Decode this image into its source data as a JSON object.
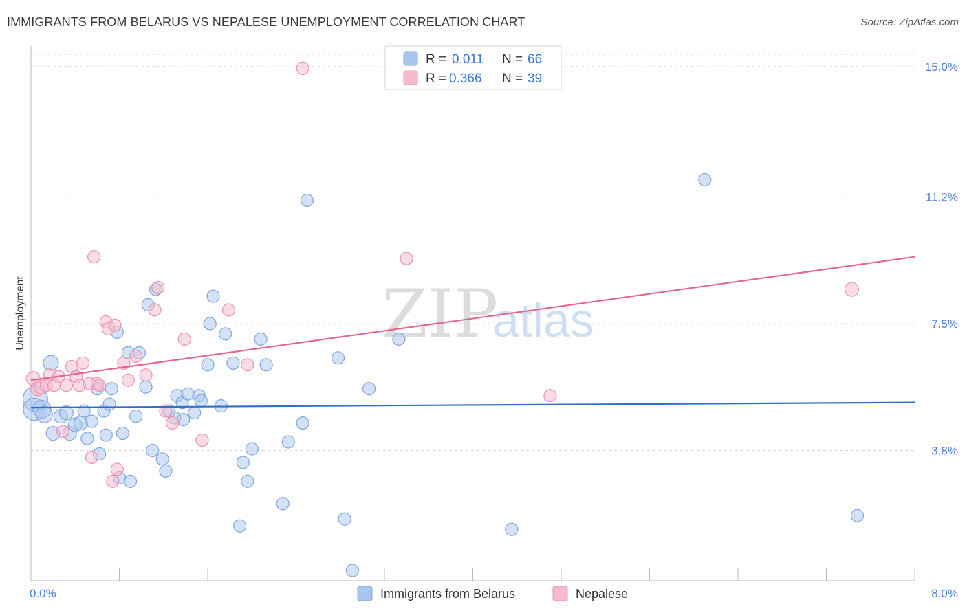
{
  "header": {
    "title": "IMMIGRANTS FROM BELARUS VS NEPALESE UNEMPLOYMENT CORRELATION CHART",
    "source": "Source: ZipAtlas.com"
  },
  "watermark": {
    "zip": "ZIP",
    "atlas": "atlas"
  },
  "colors": {
    "belarus_fill": "#a9c6ef",
    "belarus_stroke": "#7ea6dd",
    "belarus_line": "#2f6fcc",
    "nepalese_fill": "#f6b9cd",
    "nepalese_stroke": "#ec90ae",
    "nepalese_line": "#e46690",
    "grid": "#d8d8d8",
    "tick_label": "#4a7fd0"
  },
  "legend": {
    "rows": [
      {
        "r_label": "R =",
        "r_value": "0.011",
        "n_label": "N =",
        "n_value": "66"
      },
      {
        "r_label": "R =",
        "r_value": "0.366",
        "n_label": "N =",
        "n_value": "39"
      }
    ]
  },
  "chart_data": {
    "type": "scatter",
    "title": "IMMIGRANTS FROM BELARUS VS NEPALESE UNEMPLOYMENT CORRELATION CHART",
    "xlabel": "",
    "ylabel": "Unemployment",
    "xlim": [
      0,
      8
    ],
    "ylim": [
      0,
      15.7
    ],
    "x_tick_labels": [
      "0.0%",
      "8.0%"
    ],
    "y_ticks": [
      3.8,
      7.5,
      11.2,
      15.0
    ],
    "y_tick_labels": [
      "3.8%",
      "7.5%",
      "11.2%",
      "15.0%"
    ],
    "grid": true,
    "legend_position": "top-center",
    "series": [
      {
        "name": "Immigrants from Belarus",
        "R": 0.011,
        "N": 66,
        "trend": {
          "x": [
            0,
            8
          ],
          "y": [
            5.05,
            5.2
          ]
        },
        "points": [
          {
            "x": 0.04,
            "y": 5.3,
            "s": 18
          },
          {
            "x": 0.03,
            "y": 5.0,
            "s": 16
          },
          {
            "x": 0.1,
            "y": 5.0,
            "s": 13
          },
          {
            "x": 0.12,
            "y": 4.85,
            "s": 12
          },
          {
            "x": 0.18,
            "y": 6.35,
            "s": 11
          },
          {
            "x": 0.2,
            "y": 4.3,
            "s": 10
          },
          {
            "x": 0.27,
            "y": 4.8,
            "s": 10
          },
          {
            "x": 0.32,
            "y": 4.9,
            "s": 10
          },
          {
            "x": 0.35,
            "y": 4.3,
            "s": 10
          },
          {
            "x": 0.4,
            "y": 4.55,
            "s": 10
          },
          {
            "x": 0.45,
            "y": 4.6,
            "s": 10
          },
          {
            "x": 0.48,
            "y": 4.95,
            "s": 9
          },
          {
            "x": 0.51,
            "y": 4.15,
            "s": 9
          },
          {
            "x": 0.55,
            "y": 4.65,
            "s": 9
          },
          {
            "x": 0.6,
            "y": 5.6,
            "s": 9
          },
          {
            "x": 0.62,
            "y": 3.7,
            "s": 9
          },
          {
            "x": 0.66,
            "y": 4.95,
            "s": 9
          },
          {
            "x": 0.68,
            "y": 4.25,
            "s": 9
          },
          {
            "x": 0.71,
            "y": 5.15,
            "s": 9
          },
          {
            "x": 0.73,
            "y": 5.6,
            "s": 9
          },
          {
            "x": 0.78,
            "y": 7.25,
            "s": 9
          },
          {
            "x": 0.8,
            "y": 3.0,
            "s": 9
          },
          {
            "x": 0.83,
            "y": 4.3,
            "s": 9
          },
          {
            "x": 0.88,
            "y": 6.65,
            "s": 9
          },
          {
            "x": 0.9,
            "y": 2.9,
            "s": 9
          },
          {
            "x": 0.95,
            "y": 4.8,
            "s": 9
          },
          {
            "x": 0.98,
            "y": 6.65,
            "s": 9
          },
          {
            "x": 1.04,
            "y": 5.65,
            "s": 9
          },
          {
            "x": 1.06,
            "y": 8.05,
            "s": 9
          },
          {
            "x": 1.1,
            "y": 3.8,
            "s": 9
          },
          {
            "x": 1.13,
            "y": 8.5,
            "s": 9
          },
          {
            "x": 1.19,
            "y": 3.55,
            "s": 9
          },
          {
            "x": 1.22,
            "y": 3.2,
            "s": 9
          },
          {
            "x": 1.25,
            "y": 4.95,
            "s": 9
          },
          {
            "x": 1.3,
            "y": 4.75,
            "s": 9
          },
          {
            "x": 1.32,
            "y": 5.4,
            "s": 9
          },
          {
            "x": 1.37,
            "y": 5.2,
            "s": 9
          },
          {
            "x": 1.38,
            "y": 4.7,
            "s": 9
          },
          {
            "x": 1.42,
            "y": 5.45,
            "s": 9
          },
          {
            "x": 1.48,
            "y": 4.9,
            "s": 9
          },
          {
            "x": 1.52,
            "y": 5.4,
            "s": 9
          },
          {
            "x": 1.54,
            "y": 5.25,
            "s": 9
          },
          {
            "x": 1.6,
            "y": 6.3,
            "s": 9
          },
          {
            "x": 1.62,
            "y": 7.5,
            "s": 9
          },
          {
            "x": 1.65,
            "y": 8.3,
            "s": 9
          },
          {
            "x": 1.72,
            "y": 5.1,
            "s": 9
          },
          {
            "x": 1.76,
            "y": 7.2,
            "s": 9
          },
          {
            "x": 1.83,
            "y": 6.35,
            "s": 9
          },
          {
            "x": 1.89,
            "y": 1.6,
            "s": 9
          },
          {
            "x": 1.92,
            "y": 3.45,
            "s": 9
          },
          {
            "x": 1.96,
            "y": 2.9,
            "s": 9
          },
          {
            "x": 2.0,
            "y": 3.85,
            "s": 9
          },
          {
            "x": 2.08,
            "y": 7.05,
            "s": 9
          },
          {
            "x": 2.13,
            "y": 6.3,
            "s": 9
          },
          {
            "x": 2.28,
            "y": 2.25,
            "s": 9
          },
          {
            "x": 2.33,
            "y": 4.05,
            "s": 9
          },
          {
            "x": 2.46,
            "y": 4.6,
            "s": 9
          },
          {
            "x": 2.5,
            "y": 11.1,
            "s": 9
          },
          {
            "x": 2.78,
            "y": 6.5,
            "s": 9
          },
          {
            "x": 2.84,
            "y": 1.8,
            "s": 9
          },
          {
            "x": 2.91,
            "y": 0.3,
            "s": 9
          },
          {
            "x": 3.06,
            "y": 5.6,
            "s": 9
          },
          {
            "x": 3.33,
            "y": 7.05,
            "s": 9
          },
          {
            "x": 4.35,
            "y": 1.5,
            "s": 9
          },
          {
            "x": 6.1,
            "y": 11.7,
            "s": 9
          },
          {
            "x": 7.48,
            "y": 1.9,
            "s": 9
          }
        ]
      },
      {
        "name": "Nepalese",
        "R": 0.366,
        "N": 39,
        "trend": {
          "x": [
            0,
            8
          ],
          "y": [
            5.85,
            9.45
          ]
        },
        "points": [
          {
            "x": 0.02,
            "y": 5.9,
            "s": 10
          },
          {
            "x": 0.06,
            "y": 5.6,
            "s": 10
          },
          {
            "x": 0.09,
            "y": 5.65,
            "s": 10
          },
          {
            "x": 0.14,
            "y": 5.7,
            "s": 9
          },
          {
            "x": 0.17,
            "y": 6.0,
            "s": 9
          },
          {
            "x": 0.21,
            "y": 5.7,
            "s": 9
          },
          {
            "x": 0.25,
            "y": 5.95,
            "s": 9
          },
          {
            "x": 0.29,
            "y": 4.35,
            "s": 9
          },
          {
            "x": 0.32,
            "y": 5.7,
            "s": 9
          },
          {
            "x": 0.37,
            "y": 6.25,
            "s": 9
          },
          {
            "x": 0.41,
            "y": 5.95,
            "s": 9
          },
          {
            "x": 0.44,
            "y": 5.7,
            "s": 9
          },
          {
            "x": 0.47,
            "y": 6.35,
            "s": 9
          },
          {
            "x": 0.53,
            "y": 5.75,
            "s": 9
          },
          {
            "x": 0.55,
            "y": 3.6,
            "s": 9
          },
          {
            "x": 0.57,
            "y": 9.45,
            "s": 9
          },
          {
            "x": 0.6,
            "y": 5.75,
            "s": 9
          },
          {
            "x": 0.62,
            "y": 5.7,
            "s": 9
          },
          {
            "x": 0.68,
            "y": 7.55,
            "s": 9
          },
          {
            "x": 0.7,
            "y": 7.35,
            "s": 9
          },
          {
            "x": 0.74,
            "y": 2.9,
            "s": 9
          },
          {
            "x": 0.76,
            "y": 7.45,
            "s": 9
          },
          {
            "x": 0.78,
            "y": 3.25,
            "s": 9
          },
          {
            "x": 0.84,
            "y": 6.35,
            "s": 9
          },
          {
            "x": 0.88,
            "y": 5.85,
            "s": 9
          },
          {
            "x": 0.95,
            "y": 6.55,
            "s": 9
          },
          {
            "x": 1.04,
            "y": 6.0,
            "s": 9
          },
          {
            "x": 1.12,
            "y": 7.9,
            "s": 9
          },
          {
            "x": 1.15,
            "y": 8.55,
            "s": 9
          },
          {
            "x": 1.22,
            "y": 4.95,
            "s": 9
          },
          {
            "x": 1.28,
            "y": 4.6,
            "s": 9
          },
          {
            "x": 1.39,
            "y": 7.05,
            "s": 9
          },
          {
            "x": 1.55,
            "y": 4.1,
            "s": 9
          },
          {
            "x": 1.79,
            "y": 7.9,
            "s": 9
          },
          {
            "x": 1.96,
            "y": 6.3,
            "s": 9
          },
          {
            "x": 2.46,
            "y": 14.95,
            "s": 9
          },
          {
            "x": 3.4,
            "y": 9.4,
            "s": 9
          },
          {
            "x": 4.7,
            "y": 5.4,
            "s": 9
          },
          {
            "x": 7.43,
            "y": 8.5,
            "s": 10
          }
        ]
      }
    ]
  },
  "bottom_legend": {
    "items": [
      "Immigrants from Belarus",
      "Nepalese"
    ]
  }
}
